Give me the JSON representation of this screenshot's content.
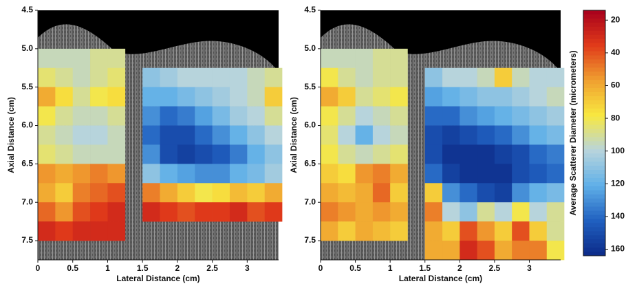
{
  "chart_data": [
    {
      "type": "heatmap",
      "x_label": "Lateral Distance (cm)",
      "y_label": "Axial Distance (cm)",
      "xlim": [
        0,
        3.45
      ],
      "ylim": [
        4.5,
        7.75
      ],
      "xticks": [
        0,
        0.5,
        1,
        1.5,
        2,
        2.5,
        3
      ],
      "yticks": [
        4.5,
        {
          "value": 5,
          "label": "5.0"
        },
        5.5,
        {
          "value": 6,
          "label": "6.0"
        },
        6.5,
        {
          "value": 7,
          "label": "7.0"
        },
        7.5
      ],
      "x": [
        0.125,
        0.375,
        0.625,
        0.875,
        1.125,
        1.375,
        1.625,
        1.875,
        2.125,
        2.375,
        2.625,
        2.875,
        3.125,
        3.375
      ],
      "y": [
        5.125,
        5.375,
        5.625,
        5.875,
        6.125,
        6.375,
        6.625,
        6.875,
        7.125,
        7.375,
        7.625
      ],
      "z": [
        [
          95,
          95,
          95,
          90,
          90,
          null,
          null,
          null,
          null,
          null,
          null,
          null,
          null,
          null
        ],
        [
          85,
          90,
          95,
          90,
          85,
          null,
          110,
          105,
          100,
          100,
          100,
          100,
          95,
          90
        ],
        [
          60,
          75,
          90,
          80,
          75,
          null,
          120,
          120,
          115,
          110,
          105,
          100,
          95,
          70
        ],
        [
          80,
          90,
          95,
          95,
          90,
          null,
          130,
          140,
          135,
          125,
          115,
          105,
          100,
          90
        ],
        [
          90,
          95,
          100,
          100,
          95,
          null,
          140,
          150,
          150,
          140,
          130,
          120,
          110,
          100
        ],
        [
          85,
          90,
          95,
          95,
          95,
          null,
          130,
          150,
          155,
          150,
          145,
          135,
          120,
          110
        ],
        [
          55,
          60,
          55,
          50,
          55,
          null,
          110,
          120,
          125,
          130,
          130,
          120,
          115,
          105
        ],
        [
          60,
          70,
          50,
          45,
          40,
          null,
          50,
          60,
          70,
          80,
          75,
          65,
          70,
          60
        ],
        [
          45,
          55,
          40,
          35,
          30,
          null,
          30,
          35,
          40,
          35,
          35,
          30,
          40,
          35
        ],
        [
          30,
          35,
          30,
          30,
          30,
          null,
          null,
          null,
          null,
          null,
          null,
          null,
          null,
          null
        ],
        [
          null,
          null,
          null,
          null,
          null,
          null,
          null,
          null,
          null,
          null,
          null,
          null,
          null,
          null
        ]
      ]
    },
    {
      "type": "heatmap",
      "x_label": "Lateral Distance (cm)",
      "y_label": "Axial Distance (cm)",
      "xlim": [
        0,
        3.45
      ],
      "ylim": [
        4.5,
        7.75
      ],
      "xticks": [
        0,
        0.5,
        1,
        1.5,
        2,
        2.5,
        3
      ],
      "yticks": [
        4.5,
        {
          "value": 5,
          "label": "5.0"
        },
        5.5,
        {
          "value": 6,
          "label": "6.0"
        },
        6.5,
        {
          "value": 7,
          "label": "7.0"
        },
        7.5
      ],
      "x": [
        0.125,
        0.375,
        0.625,
        0.875,
        1.125,
        1.375,
        1.625,
        1.875,
        2.125,
        2.375,
        2.625,
        2.875,
        3.125,
        3.375
      ],
      "y": [
        5.125,
        5.375,
        5.625,
        5.875,
        6.125,
        6.375,
        6.625,
        6.875,
        7.125,
        7.375,
        7.625
      ],
      "z": [
        [
          95,
          95,
          95,
          90,
          90,
          null,
          null,
          null,
          null,
          null,
          null,
          null,
          null,
          null
        ],
        [
          80,
          90,
          95,
          90,
          90,
          null,
          110,
          100,
          100,
          95,
          70,
          95,
          100,
          100
        ],
        [
          60,
          70,
          90,
          85,
          80,
          null,
          125,
          120,
          115,
          110,
          110,
          105,
          100,
          95
        ],
        [
          80,
          90,
          100,
          95,
          90,
          null,
          140,
          140,
          130,
          125,
          120,
          115,
          110,
          105
        ],
        [
          85,
          100,
          120,
          100,
          95,
          null,
          150,
          155,
          150,
          145,
          140,
          130,
          120,
          115
        ],
        [
          80,
          90,
          95,
          90,
          85,
          null,
          150,
          160,
          160,
          160,
          155,
          150,
          140,
          135
        ],
        [
          70,
          75,
          55,
          50,
          60,
          null,
          140,
          155,
          160,
          160,
          160,
          150,
          145,
          140
        ],
        [
          60,
          65,
          60,
          45,
          70,
          null,
          70,
          130,
          140,
          150,
          155,
          130,
          120,
          115
        ],
        [
          50,
          55,
          60,
          55,
          60,
          null,
          50,
          100,
          110,
          90,
          100,
          80,
          100,
          90
        ],
        [
          60,
          70,
          60,
          65,
          70,
          null,
          60,
          70,
          40,
          55,
          70,
          40,
          70,
          90
        ],
        [
          null,
          null,
          null,
          null,
          null,
          null,
          60,
          60,
          30,
          40,
          60,
          50,
          50,
          80
        ]
      ]
    }
  ],
  "colorbar": {
    "label": "Average Scatterer Diameter (micrometers)",
    "clim": [
      14,
      164
    ],
    "ticks": [
      20,
      40,
      60,
      80,
      100,
      120,
      140,
      160
    ],
    "colormap": [
      "#a8001c",
      "#e03a1a",
      "#f0a030",
      "#f8e840",
      "#b8d4dc",
      "#60b0e8",
      "#2060c0",
      "#0c2a88"
    ]
  }
}
